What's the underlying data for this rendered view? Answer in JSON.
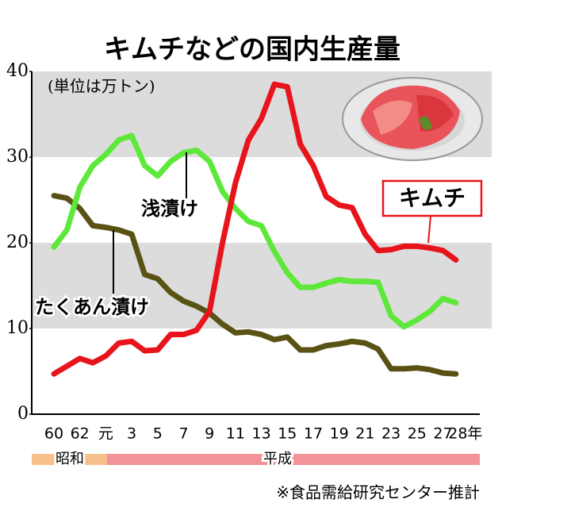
{
  "chart_data": {
    "type": "line",
    "title": "キムチなどの国内生産量",
    "unit_note": "(単位は万トン)",
    "source": "※食品需給研究センター推計",
    "categories": [
      "60",
      null,
      "62",
      null,
      "元",
      null,
      "3",
      null,
      "5",
      null,
      "7",
      null,
      "9",
      null,
      "11",
      null,
      "13",
      null,
      "15",
      null,
      "17",
      null,
      "19",
      null,
      "21",
      null,
      "23",
      null,
      "25",
      null,
      "27",
      "28年"
    ],
    "series": [
      {
        "name": "キムチ",
        "color": "#e8141b",
        "values": [
          4.7,
          5.6,
          6.5,
          6.0,
          6.8,
          8.3,
          8.5,
          7.4,
          7.5,
          9.3,
          9.3,
          9.8,
          12.0,
          20.0,
          27.0,
          32.0,
          34.5,
          38.5,
          38.2,
          31.5,
          29.0,
          25.4,
          24.4,
          24.1,
          21.0,
          19.1,
          19.2,
          19.6,
          19.6,
          19.4,
          19.1,
          18.0
        ]
      },
      {
        "name": "浅漬け",
        "color": "#5ee83a",
        "values": [
          19.5,
          21.5,
          26.5,
          29.0,
          30.3,
          32.0,
          32.5,
          29.0,
          27.8,
          29.5,
          30.5,
          30.8,
          29.5,
          26.0,
          24.0,
          22.5,
          22.0,
          19.0,
          16.5,
          14.8,
          14.8,
          15.3,
          15.7,
          15.5,
          15.5,
          15.4,
          11.5,
          10.2,
          11.0,
          12.0,
          13.5,
          13.0
        ]
      },
      {
        "name": "たくあん漬け",
        "color": "#5a5214",
        "values": [
          25.5,
          25.2,
          24.0,
          22.0,
          21.8,
          21.5,
          21.0,
          16.3,
          15.8,
          14.2,
          13.2,
          12.6,
          11.8,
          10.5,
          9.5,
          9.6,
          9.3,
          8.7,
          9.0,
          7.5,
          7.5,
          8.0,
          8.2,
          8.5,
          8.3,
          7.6,
          5.3,
          5.3,
          5.4,
          5.2,
          4.8,
          4.7
        ]
      }
    ],
    "ylim": [
      0,
      40
    ],
    "yticks": [
      0,
      10,
      20,
      30,
      40
    ],
    "grid_bands": true,
    "band_color": "#dcdcdc",
    "eras": [
      {
        "label": "昭和",
        "color": "#f7c08a"
      },
      {
        "label": "平成",
        "color": "#f2939a"
      }
    ]
  }
}
